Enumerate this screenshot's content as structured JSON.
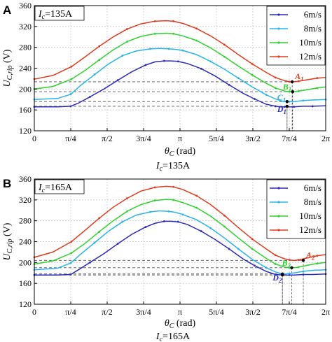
{
  "chart_data": [
    {
      "type": "line",
      "panel_letter": "A",
      "inbox_label": "I_c=135A",
      "caption": "I_c=135A",
      "xlabel": "θ_C (rad)",
      "ylabel": "U_C,rip (V)",
      "xlim": [
        0,
        6.2832
      ],
      "ylim": [
        120,
        360
      ],
      "x_tick_labels": [
        "0",
        "π/4",
        "π/2",
        "3π/4",
        "π",
        "5π/4",
        "3π/2",
        "7π/4",
        "2π"
      ],
      "y_tick_labels": [
        "120",
        "160",
        "200",
        "240",
        "280",
        "320",
        "360"
      ],
      "grid": true,
      "legend_position": "top-right",
      "series": [
        {
          "name": "6m/s",
          "color": "#2b2bb8",
          "x": [
            0,
            0.5,
            0.785,
            0.95,
            1.2,
            1.5,
            1.8,
            2.1,
            2.4,
            2.6,
            2.8,
            2.95,
            3.1,
            3.3,
            3.6,
            3.9,
            4.2,
            4.5,
            4.75,
            5.0,
            5.2,
            5.3,
            5.4,
            5.5,
            5.6,
            5.8,
            6.0,
            6.2832
          ],
          "values": [
            166,
            166,
            167,
            173,
            185,
            200,
            217,
            233,
            246,
            252,
            254,
            254,
            253,
            249,
            239,
            225,
            208,
            192,
            181,
            171,
            167,
            166,
            166,
            166,
            166,
            167,
            167,
            168
          ]
        },
        {
          "name": "8m/s",
          "color": "#27b5e8",
          "x": [
            0,
            0.5,
            0.785,
            1.0,
            1.3,
            1.6,
            1.9,
            2.2,
            2.5,
            2.7,
            2.9,
            3.05,
            3.2,
            3.5,
            3.8,
            4.1,
            4.4,
            4.7,
            5.0,
            5.2,
            5.3,
            5.4,
            5.5,
            5.6,
            5.8,
            6.0,
            6.2832
          ],
          "values": [
            180,
            182,
            190,
            207,
            228,
            248,
            264,
            273,
            277,
            278,
            277,
            276,
            274,
            266,
            253,
            238,
            221,
            204,
            189,
            181,
            178,
            176,
            176,
            176,
            178,
            179,
            180
          ]
        },
        {
          "name": "10m/s",
          "color": "#2ed12e",
          "x": [
            0,
            0.4,
            0.8,
            1.1,
            1.4,
            1.7,
            2.0,
            2.3,
            2.6,
            2.85,
            3.0,
            3.2,
            3.5,
            3.8,
            4.1,
            4.4,
            4.7,
            5.0,
            5.2,
            5.4,
            5.5,
            5.6,
            5.7,
            5.9,
            6.1,
            6.2832
          ],
          "values": [
            200,
            205,
            219,
            236,
            256,
            275,
            291,
            301,
            306,
            307,
            306,
            302,
            293,
            279,
            262,
            244,
            227,
            211,
            202,
            196,
            195,
            195,
            196,
            199,
            202,
            204
          ]
        },
        {
          "name": "12m/s",
          "color": "#e03a1e",
          "x": [
            0,
            0.4,
            0.8,
            1.1,
            1.4,
            1.7,
            2.0,
            2.3,
            2.6,
            2.85,
            3.0,
            3.2,
            3.5,
            3.8,
            4.1,
            4.4,
            4.7,
            5.0,
            5.2,
            5.4,
            5.5,
            5.6,
            5.7,
            5.9,
            6.1,
            6.2832
          ],
          "values": [
            219,
            226,
            243,
            262,
            282,
            300,
            315,
            325,
            330,
            331,
            330,
            326,
            316,
            302,
            285,
            266,
            248,
            232,
            222,
            216,
            214,
            214,
            215,
            218,
            221,
            222
          ]
        }
      ],
      "ref_lines": [
        214,
        195,
        176,
        167
      ],
      "markers": [
        {
          "label": "A",
          "sub": "1",
          "x": 5.56,
          "y": 214,
          "color": "#e03a1e"
        },
        {
          "label": "B",
          "sub": "1",
          "x": 5.57,
          "y": 195,
          "color": "#2ed12e"
        },
        {
          "label": "C",
          "sub": "1",
          "x": 5.45,
          "y": 176,
          "color": "#27b5e8"
        },
        {
          "label": "D",
          "sub": "1",
          "x": 5.45,
          "y": 167,
          "color": "#2b2bb8"
        }
      ]
    },
    {
      "type": "line",
      "panel_letter": "B",
      "inbox_label": "I_c=165A",
      "caption": "I_c=165A",
      "xlabel": "θ_C (rad)",
      "ylabel": "U_C,rip (V)",
      "xlim": [
        0,
        6.2832
      ],
      "ylim": [
        120,
        360
      ],
      "x_tick_labels": [
        "0",
        "π/4",
        "π/2",
        "3π/4",
        "π",
        "5π/4",
        "3π/2",
        "7π/4",
        "2π"
      ],
      "y_tick_labels": [
        "120",
        "160",
        "200",
        "240",
        "280",
        "320",
        "360"
      ],
      "grid": true,
      "legend_position": "top-right",
      "series": [
        {
          "name": "6m/s",
          "color": "#2b2bb8",
          "x": [
            0,
            0.5,
            0.785,
            0.95,
            1.2,
            1.5,
            1.8,
            2.1,
            2.4,
            2.6,
            2.8,
            2.95,
            3.1,
            3.3,
            3.6,
            3.9,
            4.2,
            4.5,
            4.75,
            5.0,
            5.2,
            5.35,
            5.5,
            5.6,
            5.8,
            6.0,
            6.2832
          ],
          "values": [
            176,
            176,
            177,
            186,
            200,
            217,
            236,
            254,
            268,
            275,
            279,
            279,
            278,
            273,
            260,
            244,
            226,
            207,
            194,
            183,
            177,
            176,
            176,
            176,
            177,
            177,
            178
          ]
        },
        {
          "name": "8m/s",
          "color": "#27b5e8",
          "x": [
            0,
            0.5,
            0.785,
            1.0,
            1.3,
            1.6,
            1.9,
            2.2,
            2.5,
            2.7,
            2.9,
            3.05,
            3.2,
            3.5,
            3.8,
            4.1,
            4.4,
            4.7,
            5.0,
            5.2,
            5.3,
            5.4,
            5.5,
            5.6,
            5.8,
            6.0,
            6.2832
          ],
          "values": [
            186,
            189,
            199,
            216,
            238,
            260,
            278,
            291,
            297,
            299,
            298,
            296,
            292,
            282,
            266,
            247,
            226,
            206,
            190,
            182,
            179,
            178,
            179,
            180,
            183,
            185,
            186
          ]
        },
        {
          "name": "10m/s",
          "color": "#2ed12e",
          "x": [
            0,
            0.4,
            0.8,
            1.1,
            1.4,
            1.7,
            2.0,
            2.3,
            2.6,
            2.85,
            3.0,
            3.2,
            3.5,
            3.8,
            4.1,
            4.4,
            4.7,
            5.0,
            5.2,
            5.4,
            5.5,
            5.6,
            5.7,
            5.9,
            6.1,
            6.2832
          ],
          "values": [
            197,
            203,
            218,
            237,
            259,
            280,
            298,
            311,
            319,
            321,
            320,
            315,
            305,
            289,
            269,
            247,
            226,
            208,
            197,
            191,
            190,
            190,
            191,
            195,
            198,
            200
          ]
        },
        {
          "name": "12m/s",
          "color": "#e03a1e",
          "x": [
            0,
            0.4,
            0.8,
            1.1,
            1.4,
            1.7,
            2.0,
            2.3,
            2.6,
            2.85,
            3.0,
            3.2,
            3.5,
            3.8,
            4.1,
            4.4,
            4.7,
            5.0,
            5.2,
            5.4,
            5.5,
            5.6,
            5.7,
            5.9,
            6.1,
            6.2832
          ],
          "values": [
            210,
            220,
            240,
            262,
            285,
            306,
            323,
            337,
            344,
            346,
            345,
            340,
            328,
            311,
            290,
            267,
            245,
            226,
            214,
            207,
            205,
            204,
            205,
            209,
            213,
            215
          ]
        }
      ],
      "ref_lines": [
        204,
        190,
        178,
        176
      ],
      "markers": [
        {
          "label": "A",
          "sub": "2",
          "x": 5.8,
          "y": 204,
          "color": "#e03a1e"
        },
        {
          "label": "B",
          "sub": "2",
          "x": 5.55,
          "y": 190,
          "color": "#2ed12e"
        },
        {
          "label": "",
          "sub": "",
          "x": 5.35,
          "y": 178,
          "color": "#27b5e8"
        },
        {
          "label": "D",
          "sub": "2",
          "x": 5.35,
          "y": 176,
          "color": "#2b2bb8"
        }
      ]
    }
  ]
}
